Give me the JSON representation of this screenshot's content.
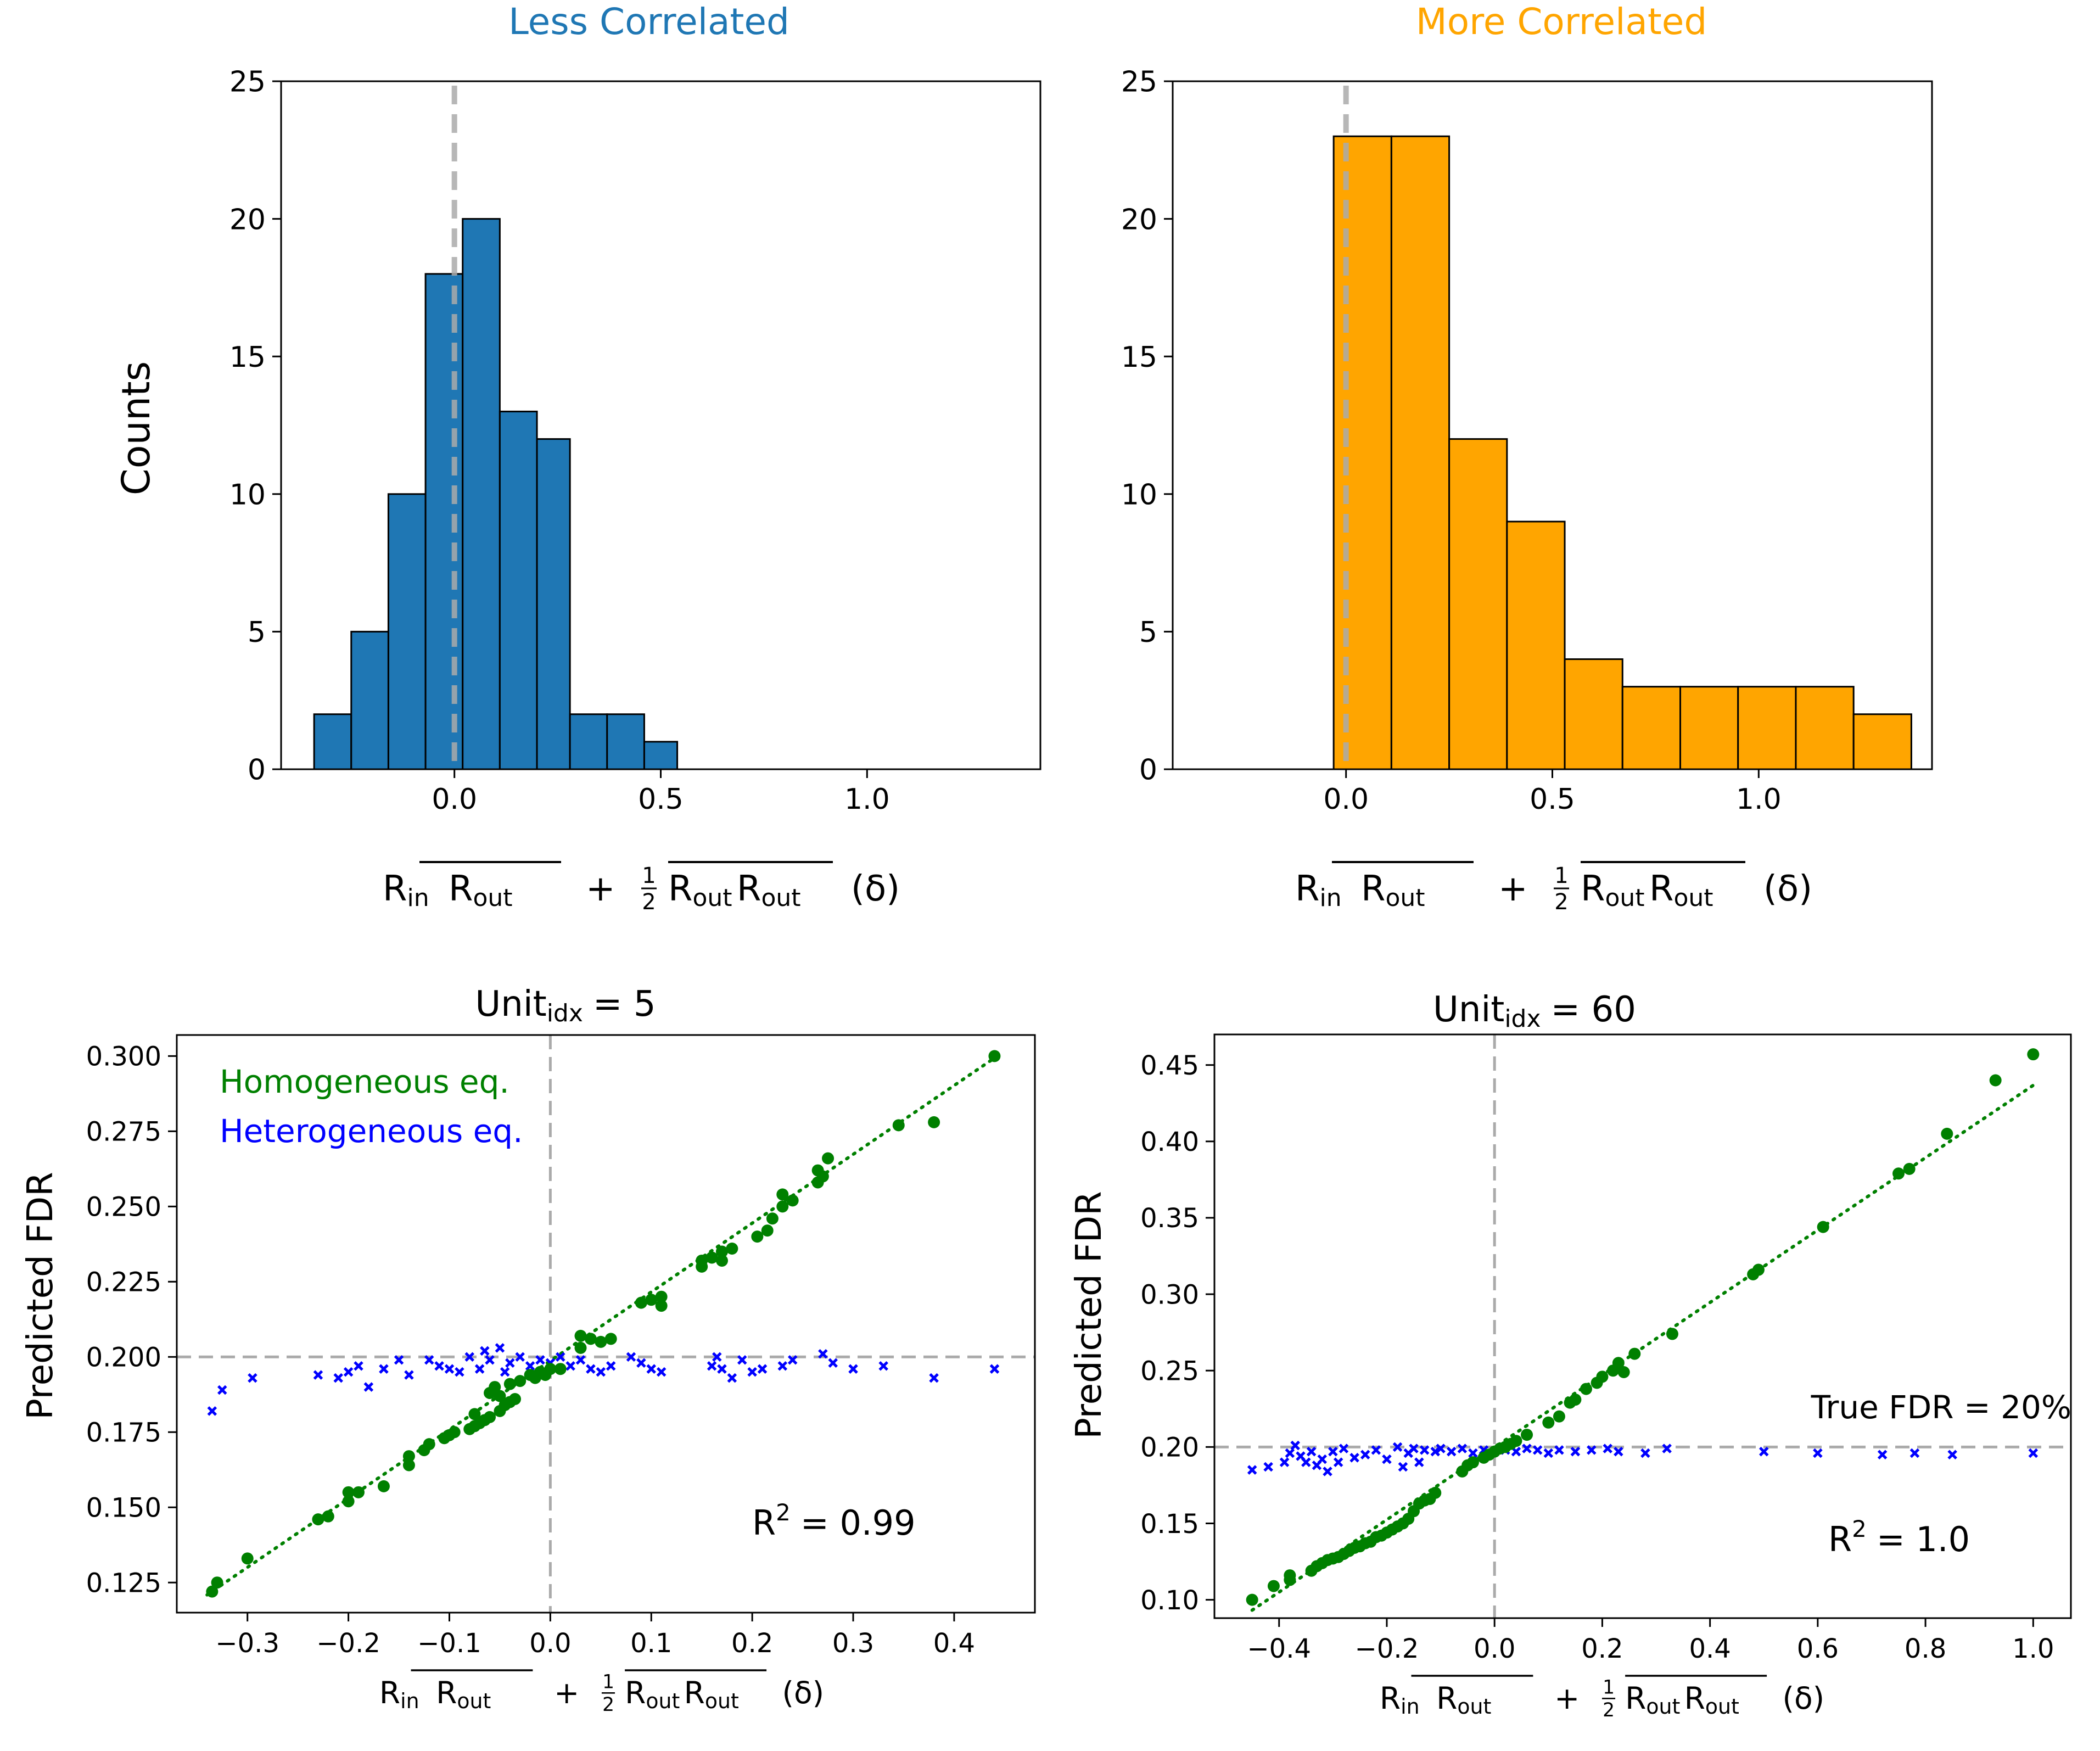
{
  "figure": {
    "panels": {
      "top_left_title": "Less Correlated",
      "top_right_title": "More Correlated",
      "bottom_left_title_main": "Unit",
      "bottom_left_title_sub": "idx",
      "bottom_left_title_value": "=  5",
      "bottom_right_title_main": "Unit",
      "bottom_right_title_sub": "idx",
      "bottom_right_title_value": "=  60"
    },
    "xlabel": {
      "r": "R",
      "in": "in",
      "out": "out",
      "plus": "+",
      "half_num": "1",
      "half_den": "2",
      "delta": "(δ)"
    },
    "colors": {
      "less": "#1f77b4",
      "more": "#ffa500",
      "homogeneous": "#008000",
      "heterogeneous": "#0000ff",
      "reference": "#aaaaaa"
    }
  },
  "chart_data": [
    {
      "type": "bar",
      "id": "hist_less",
      "title": "Less Correlated",
      "ylabel": "Counts",
      "xlim": [
        -0.42,
        1.42
      ],
      "ylim": [
        0,
        25
      ],
      "xticks": [
        0.0,
        0.5,
        1.0
      ],
      "xtick_labels": [
        "0.0",
        "0.5",
        "1.0"
      ],
      "yticks": [
        0,
        5,
        10,
        15,
        20,
        25
      ],
      "ytick_labels": [
        "0",
        "5",
        "10",
        "15",
        "20",
        "25"
      ],
      "bin_edges": [
        -0.34,
        -0.25,
        -0.16,
        -0.07,
        0.02,
        0.11,
        0.2,
        0.28,
        0.37,
        0.46,
        0.54
      ],
      "values": [
        2,
        5,
        10,
        18,
        20,
        13,
        12,
        2,
        2,
        1
      ],
      "vline_x": 0.0
    },
    {
      "type": "bar",
      "id": "hist_more",
      "title": "More Correlated",
      "xlim": [
        -0.42,
        1.42
      ],
      "ylim": [
        0,
        25
      ],
      "xticks": [
        0.0,
        0.5,
        1.0
      ],
      "xtick_labels": [
        "0.0",
        "0.5",
        "1.0"
      ],
      "yticks": [
        0,
        5,
        10,
        15,
        20,
        25
      ],
      "ytick_labels": [
        "0",
        "5",
        "10",
        "15",
        "20",
        "25"
      ],
      "bin_edges": [
        -0.03,
        0.11,
        0.25,
        0.39,
        0.53,
        0.67,
        0.81,
        0.95,
        1.09,
        1.23,
        1.37
      ],
      "values": [
        23,
        23,
        12,
        9,
        4,
        3,
        3,
        3,
        3,
        2
      ],
      "vline_x": 0.0
    },
    {
      "type": "scatter",
      "id": "scatter_unit5",
      "ylabel": "Predicted FDR",
      "xlim": [
        -0.37,
        0.48
      ],
      "ylim": [
        0.115,
        0.307
      ],
      "xticks": [
        -0.3,
        -0.2,
        -0.1,
        0.0,
        0.1,
        0.2,
        0.3,
        0.4
      ],
      "xtick_labels": [
        "−0.3",
        "−0.2",
        "−0.1",
        "0.0",
        "0.1",
        "0.2",
        "0.3",
        "0.4"
      ],
      "yticks": [
        0.125,
        0.15,
        0.175,
        0.2,
        0.225,
        0.25,
        0.275,
        0.3
      ],
      "ytick_labels": [
        "0.125",
        "0.150",
        "0.175",
        "0.200",
        "0.225",
        "0.250",
        "0.275",
        "0.300"
      ],
      "hline_y": 0.2,
      "vline_x": 0.0,
      "fit": {
        "slope": 0.2288,
        "intercept": 0.1987,
        "x_range": [
          -0.34,
          0.44
        ]
      },
      "legend": [
        "Homogeneous eq.",
        "Heterogeneous eq."
      ],
      "annotation": {
        "r2_label": "R",
        "r2_sup": "2",
        "r2_value": "=  0.99"
      },
      "homogeneous": [
        [
          -0.335,
          0.122
        ],
        [
          -0.33,
          0.125
        ],
        [
          -0.3,
          0.133
        ],
        [
          -0.23,
          0.146
        ],
        [
          -0.22,
          0.147
        ],
        [
          -0.2,
          0.152
        ],
        [
          -0.2,
          0.155
        ],
        [
          -0.19,
          0.155
        ],
        [
          -0.165,
          0.157
        ],
        [
          -0.14,
          0.164
        ],
        [
          -0.14,
          0.167
        ],
        [
          -0.125,
          0.169
        ],
        [
          -0.12,
          0.171
        ],
        [
          -0.105,
          0.173
        ],
        [
          -0.1,
          0.174
        ],
        [
          -0.095,
          0.175
        ],
        [
          -0.08,
          0.176
        ],
        [
          -0.075,
          0.177
        ],
        [
          -0.07,
          0.178
        ],
        [
          -0.065,
          0.179
        ],
        [
          -0.06,
          0.18
        ],
        [
          -0.075,
          0.181
        ],
        [
          -0.05,
          0.182
        ],
        [
          -0.045,
          0.184
        ],
        [
          -0.04,
          0.185
        ],
        [
          -0.035,
          0.186
        ],
        [
          -0.05,
          0.187
        ],
        [
          -0.06,
          0.188
        ],
        [
          -0.055,
          0.19
        ],
        [
          -0.04,
          0.191
        ],
        [
          -0.03,
          0.192
        ],
        [
          -0.02,
          0.194
        ],
        [
          -0.01,
          0.195
        ],
        [
          0.0,
          0.196
        ],
        [
          -0.015,
          0.193
        ],
        [
          -0.005,
          0.194
        ],
        [
          0.01,
          0.196
        ],
        [
          0.03,
          0.203
        ],
        [
          0.03,
          0.207
        ],
        [
          0.04,
          0.206
        ],
        [
          0.05,
          0.205
        ],
        [
          0.06,
          0.206
        ],
        [
          0.09,
          0.218
        ],
        [
          0.1,
          0.219
        ],
        [
          0.11,
          0.217
        ],
        [
          0.11,
          0.22
        ],
        [
          0.15,
          0.23
        ],
        [
          0.15,
          0.232
        ],
        [
          0.16,
          0.233
        ],
        [
          0.17,
          0.235
        ],
        [
          0.17,
          0.232
        ],
        [
          0.18,
          0.236
        ],
        [
          0.205,
          0.24
        ],
        [
          0.215,
          0.242
        ],
        [
          0.22,
          0.246
        ],
        [
          0.23,
          0.25
        ],
        [
          0.23,
          0.254
        ],
        [
          0.24,
          0.252
        ],
        [
          0.265,
          0.258
        ],
        [
          0.265,
          0.262
        ],
        [
          0.27,
          0.26
        ],
        [
          0.275,
          0.266
        ],
        [
          0.345,
          0.277
        ],
        [
          0.38,
          0.278
        ],
        [
          0.44,
          0.3
        ]
      ],
      "heterogeneous": [
        [
          -0.335,
          0.182
        ],
        [
          -0.325,
          0.189
        ],
        [
          -0.295,
          0.193
        ],
        [
          -0.23,
          0.194
        ],
        [
          -0.21,
          0.193
        ],
        [
          -0.2,
          0.195
        ],
        [
          -0.19,
          0.197
        ],
        [
          -0.18,
          0.19
        ],
        [
          -0.165,
          0.196
        ],
        [
          -0.15,
          0.199
        ],
        [
          -0.14,
          0.194
        ],
        [
          -0.12,
          0.199
        ],
        [
          -0.11,
          0.197
        ],
        [
          -0.1,
          0.196
        ],
        [
          -0.09,
          0.195
        ],
        [
          -0.08,
          0.2
        ],
        [
          -0.07,
          0.196
        ],
        [
          -0.065,
          0.202
        ],
        [
          -0.06,
          0.199
        ],
        [
          -0.05,
          0.203
        ],
        [
          -0.045,
          0.195
        ],
        [
          -0.04,
          0.198
        ],
        [
          -0.03,
          0.2
        ],
        [
          -0.02,
          0.197
        ],
        [
          -0.01,
          0.199
        ],
        [
          0.0,
          0.198
        ],
        [
          0.01,
          0.2
        ],
        [
          0.02,
          0.197
        ],
        [
          0.03,
          0.199
        ],
        [
          0.04,
          0.196
        ],
        [
          0.05,
          0.195
        ],
        [
          0.06,
          0.197
        ],
        [
          0.08,
          0.2
        ],
        [
          0.09,
          0.198
        ],
        [
          0.1,
          0.196
        ],
        [
          0.11,
          0.195
        ],
        [
          0.16,
          0.197
        ],
        [
          0.165,
          0.2
        ],
        [
          0.17,
          0.196
        ],
        [
          0.18,
          0.193
        ],
        [
          0.19,
          0.199
        ],
        [
          0.2,
          0.195
        ],
        [
          0.21,
          0.196
        ],
        [
          0.23,
          0.197
        ],
        [
          0.24,
          0.199
        ],
        [
          0.27,
          0.201
        ],
        [
          0.28,
          0.198
        ],
        [
          0.3,
          0.196
        ],
        [
          0.33,
          0.197
        ],
        [
          0.38,
          0.193
        ],
        [
          0.44,
          0.196
        ]
      ]
    },
    {
      "type": "scatter",
      "id": "scatter_unit60",
      "ylabel": "Predicted FDR",
      "xlim": [
        -0.52,
        1.07
      ],
      "ylim": [
        0.088,
        0.47
      ],
      "xticks": [
        -0.4,
        -0.2,
        0.0,
        0.2,
        0.4,
        0.6,
        0.8,
        1.0
      ],
      "xtick_labels": [
        "−0.4",
        "−0.2",
        "0.0",
        "0.2",
        "0.4",
        "0.6",
        "0.8",
        "1.0"
      ],
      "yticks": [
        0.1,
        0.15,
        0.2,
        0.25,
        0.3,
        0.35,
        0.4,
        0.45
      ],
      "ytick_labels": [
        "0.10",
        "0.15",
        "0.20",
        "0.25",
        "0.30",
        "0.35",
        "0.40",
        "0.45"
      ],
      "hline_y": 0.2,
      "vline_x": 0.0,
      "fit": {
        "slope": 0.2369,
        "intercept": 0.1998,
        "x_range": [
          -0.45,
          1.0
        ]
      },
      "annotation_fdr": "True FDR = 20%",
      "annotation": {
        "r2_label": "R",
        "r2_sup": "2",
        "r2_value": "=  1.0"
      },
      "homogeneous": [
        [
          -0.45,
          0.1
        ],
        [
          -0.41,
          0.109
        ],
        [
          -0.38,
          0.113
        ],
        [
          -0.38,
          0.116
        ],
        [
          -0.34,
          0.119
        ],
        [
          -0.33,
          0.122
        ],
        [
          -0.32,
          0.124
        ],
        [
          -0.31,
          0.126
        ],
        [
          -0.3,
          0.127
        ],
        [
          -0.29,
          0.128
        ],
        [
          -0.28,
          0.13
        ],
        [
          -0.27,
          0.132
        ],
        [
          -0.26,
          0.134
        ],
        [
          -0.25,
          0.135
        ],
        [
          -0.24,
          0.137
        ],
        [
          -0.23,
          0.138
        ],
        [
          -0.22,
          0.141
        ],
        [
          -0.21,
          0.142
        ],
        [
          -0.2,
          0.144
        ],
        [
          -0.19,
          0.146
        ],
        [
          -0.18,
          0.148
        ],
        [
          -0.17,
          0.15
        ],
        [
          -0.16,
          0.153
        ],
        [
          -0.15,
          0.158
        ],
        [
          -0.14,
          0.163
        ],
        [
          -0.13,
          0.165
        ],
        [
          -0.12,
          0.166
        ],
        [
          -0.11,
          0.17
        ],
        [
          -0.06,
          0.184
        ],
        [
          -0.05,
          0.188
        ],
        [
          -0.04,
          0.19
        ],
        [
          -0.02,
          0.193
        ],
        [
          -0.01,
          0.195
        ],
        [
          0.0,
          0.197
        ],
        [
          0.01,
          0.199
        ],
        [
          0.02,
          0.2
        ],
        [
          0.03,
          0.202
        ],
        [
          0.04,
          0.204
        ],
        [
          0.06,
          0.208
        ],
        [
          0.1,
          0.216
        ],
        [
          0.12,
          0.22
        ],
        [
          0.14,
          0.229
        ],
        [
          0.15,
          0.231
        ],
        [
          0.17,
          0.238
        ],
        [
          0.19,
          0.242
        ],
        [
          0.2,
          0.246
        ],
        [
          0.22,
          0.25
        ],
        [
          0.23,
          0.255
        ],
        [
          0.24,
          0.249
        ],
        [
          0.26,
          0.261
        ],
        [
          0.33,
          0.274
        ],
        [
          0.48,
          0.313
        ],
        [
          0.49,
          0.316
        ],
        [
          0.61,
          0.344
        ],
        [
          0.75,
          0.379
        ],
        [
          0.77,
          0.382
        ],
        [
          0.84,
          0.405
        ],
        [
          0.93,
          0.44
        ],
        [
          1.0,
          0.457
        ]
      ],
      "heterogeneous": [
        [
          -0.45,
          0.185
        ],
        [
          -0.42,
          0.187
        ],
        [
          -0.39,
          0.19
        ],
        [
          -0.38,
          0.196
        ],
        [
          -0.37,
          0.201
        ],
        [
          -0.36,
          0.194
        ],
        [
          -0.35,
          0.19
        ],
        [
          -0.34,
          0.197
        ],
        [
          -0.33,
          0.188
        ],
        [
          -0.32,
          0.192
        ],
        [
          -0.31,
          0.184
        ],
        [
          -0.3,
          0.197
        ],
        [
          -0.29,
          0.19
        ],
        [
          -0.28,
          0.199
        ],
        [
          -0.26,
          0.193
        ],
        [
          -0.24,
          0.195
        ],
        [
          -0.22,
          0.198
        ],
        [
          -0.2,
          0.192
        ],
        [
          -0.18,
          0.2
        ],
        [
          -0.17,
          0.187
        ],
        [
          -0.16,
          0.196
        ],
        [
          -0.15,
          0.199
        ],
        [
          -0.14,
          0.19
        ],
        [
          -0.13,
          0.198
        ],
        [
          -0.11,
          0.197
        ],
        [
          -0.1,
          0.199
        ],
        [
          -0.08,
          0.197
        ],
        [
          -0.06,
          0.199
        ],
        [
          -0.04,
          0.196
        ],
        [
          -0.02,
          0.198
        ],
        [
          0.02,
          0.198
        ],
        [
          0.04,
          0.197
        ],
        [
          0.06,
          0.199
        ],
        [
          0.08,
          0.198
        ],
        [
          0.1,
          0.196
        ],
        [
          0.12,
          0.198
        ],
        [
          0.15,
          0.197
        ],
        [
          0.18,
          0.198
        ],
        [
          0.21,
          0.199
        ],
        [
          0.23,
          0.197
        ],
        [
          0.28,
          0.196
        ],
        [
          0.32,
          0.199
        ],
        [
          0.5,
          0.197
        ],
        [
          0.6,
          0.196
        ],
        [
          0.72,
          0.195
        ],
        [
          0.78,
          0.196
        ],
        [
          0.85,
          0.195
        ],
        [
          1.0,
          0.196
        ]
      ]
    }
  ]
}
